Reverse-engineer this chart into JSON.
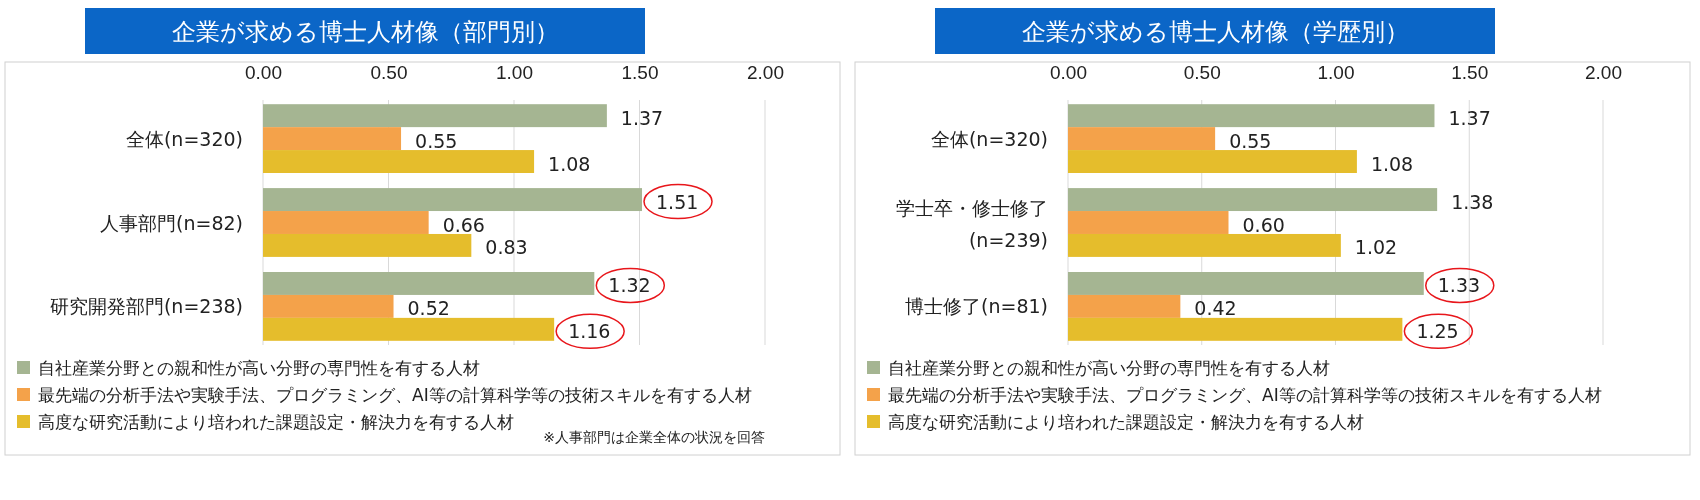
{
  "chart_data": [
    {
      "type": "bar",
      "orientation": "horizontal",
      "title": "企業が求める博士人材像（部門別）",
      "categories": [
        "全体(n=320)",
        "人事部門(n=82)",
        "研究開発部門(n=238)"
      ],
      "series": [
        {
          "name": "自社産業分野との親和性が高い分野の専門性を有する人材",
          "color": "#a5b592",
          "values": [
            1.37,
            1.51,
            1.32
          ],
          "value_labels": [
            "1.37",
            "1.51",
            "1.32"
          ]
        },
        {
          "name": "最先端の分析手法や実験手法、プログラミング、AI等の計算科学等の技術スキルを有する人材",
          "color": "#f4a24a",
          "values": [
            0.55,
            0.66,
            0.52
          ],
          "value_labels": [
            "0.55",
            "0.66",
            "0.52"
          ]
        },
        {
          "name": "高度な研究活動により培われた課題設定・解決力を有する人材",
          "color": "#e5bd2c",
          "values": [
            1.08,
            0.83,
            1.16
          ],
          "value_labels": [
            "1.08",
            "0.83",
            "1.16"
          ]
        }
      ],
      "xlim": [
        0,
        2
      ],
      "xticks": [
        {
          "value": 0,
          "label": "0.00"
        },
        {
          "value": 0.5,
          "label": "0.50"
        },
        {
          "value": 1,
          "label": "1.00"
        },
        {
          "value": 1.5,
          "label": "1.50"
        },
        {
          "value": 2,
          "label": "2.00"
        }
      ],
      "grid": "x",
      "legend": "bottom",
      "annotations": [
        "※人事部門は企業全体の状況を回答"
      ]
    },
    {
      "type": "bar",
      "orientation": "horizontal",
      "title": "企業が求める博士人材像（学歴別）",
      "categories": [
        "全体(n=320)",
        "学士卒・修士修了(n=239)",
        "博士修了(n=81)"
      ],
      "series": [
        {
          "name": "自社産業分野との親和性が高い分野の専門性を有する人材",
          "color": "#a5b592",
          "values": [
            1.37,
            1.38,
            1.33
          ],
          "value_labels": [
            "1.37",
            "1.38",
            "1.33"
          ]
        },
        {
          "name": "最先端の分析手法や実験手法、プログラミング、AI等の計算科学等の技術スキルを有する人材",
          "color": "#f4a24a",
          "values": [
            0.55,
            0.6,
            0.42
          ],
          "value_labels": [
            "0.55",
            "0.60",
            "0.42"
          ]
        },
        {
          "name": "高度な研究活動により培われた課題設定・解決力を有する人材",
          "color": "#e5bd2c",
          "values": [
            1.08,
            1.02,
            1.25
          ],
          "value_labels": [
            "1.08",
            "1.02",
            "1.25"
          ]
        }
      ],
      "xlim": [
        0,
        2
      ],
      "xticks": [
        {
          "value": 0,
          "label": "0.00"
        },
        {
          "value": 0.5,
          "label": "0.50"
        },
        {
          "value": 1,
          "label": "1.00"
        },
        {
          "value": 1.5,
          "label": "1.50"
        },
        {
          "value": 2,
          "label": "2.00"
        }
      ],
      "grid": "x",
      "legend": "bottom"
    }
  ]
}
